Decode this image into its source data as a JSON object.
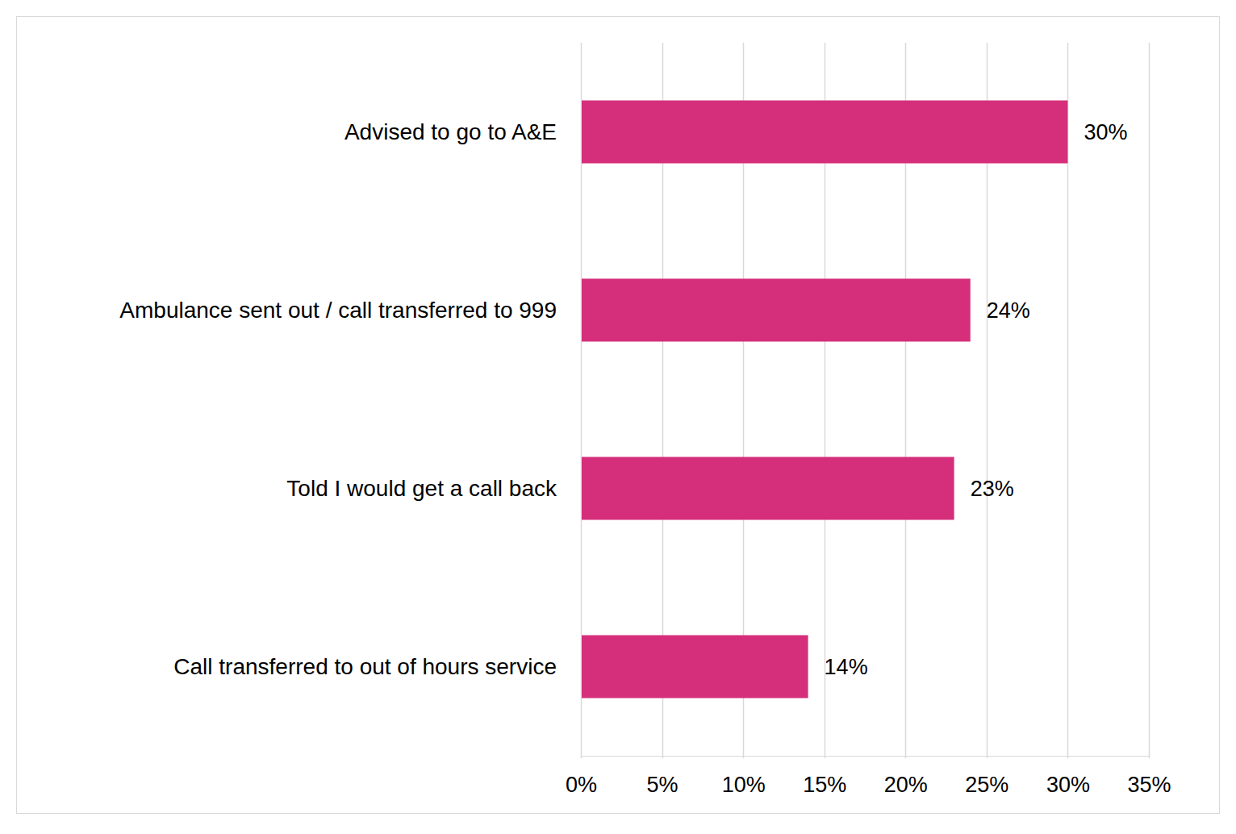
{
  "chart_data": {
    "type": "bar",
    "orientation": "horizontal",
    "categories": [
      "Advised to go to A&E",
      "Ambulance sent out / call transferred to 999",
      "Told I would get a call back",
      "Call transferred to out of hours service"
    ],
    "values": [
      30,
      24,
      23,
      14
    ],
    "value_labels": [
      "30%",
      "24%",
      "23%",
      "14%"
    ],
    "data_labels": true,
    "color": "#d52f7b",
    "xlim": [
      0,
      35
    ],
    "xticks": [
      {
        "value": 0,
        "label": "0%"
      },
      {
        "value": 5,
        "label": "5%"
      },
      {
        "value": 10,
        "label": "10%"
      },
      {
        "value": 15,
        "label": "15%"
      },
      {
        "value": 20,
        "label": "20%"
      },
      {
        "value": 25,
        "label": "25%"
      },
      {
        "value": 30,
        "label": "30%"
      },
      {
        "value": 35,
        "label": "35%"
      }
    ],
    "grid": true
  }
}
